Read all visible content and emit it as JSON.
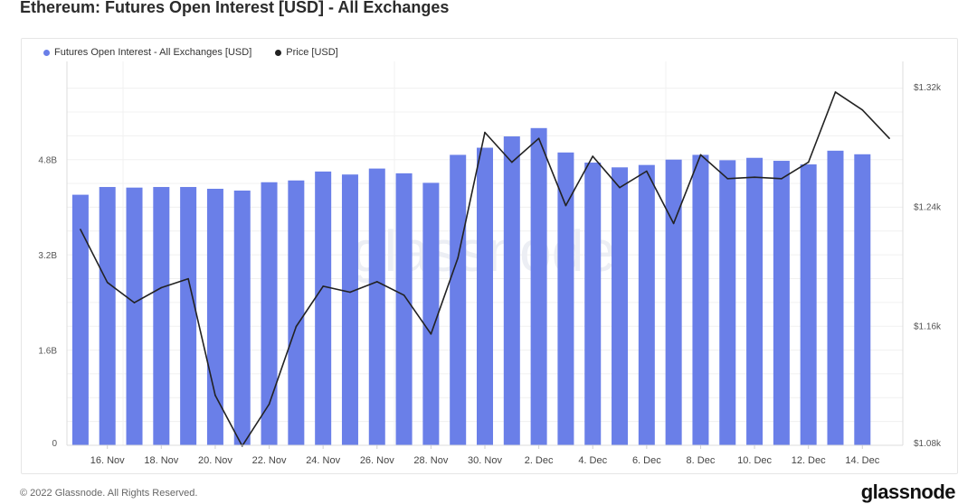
{
  "title": "Ethereum: Futures Open Interest [USD] - All Exchanges",
  "footer": {
    "copyright": "© 2022 Glassnode. All Rights Reserved.",
    "brand": "glassnode"
  },
  "watermark": "glassnode",
  "chart_data": {
    "type": "bar",
    "title": "Ethereum: Futures Open Interest [USD] - All Exchanges",
    "grid": true,
    "legend_position": "top-left",
    "colors": {
      "bars": "#6a7fe8",
      "price_line": "#222222"
    },
    "x": [
      "15 Nov",
      "16 Nov",
      "17 Nov",
      "18 Nov",
      "19 Nov",
      "20 Nov",
      "21 Nov",
      "22 Nov",
      "23 Nov",
      "24 Nov",
      "25 Nov",
      "26 Nov",
      "27 Nov",
      "28 Nov",
      "29 Nov",
      "30 Nov",
      "1 Dec",
      "2 Dec",
      "3 Dec",
      "4 Dec",
      "5 Dec",
      "6 Dec",
      "7 Dec",
      "8 Dec",
      "9 Dec",
      "10 Dec",
      "11 Dec",
      "12 Dec",
      "13 Dec",
      "14 Dec",
      "15 Dec"
    ],
    "x_tick_labels": [
      "16. Nov",
      "18. Nov",
      "20. Nov",
      "22. Nov",
      "24. Nov",
      "26. Nov",
      "28. Nov",
      "30. Nov",
      "2. Dec",
      "4. Dec",
      "6. Dec",
      "8. Dec",
      "10. Dec",
      "12. Dec",
      "14. Dec"
    ],
    "left_axis": {
      "ticks": [
        "0",
        "1.6B",
        "3.2B",
        "4.8B"
      ],
      "tick_values": [
        0,
        1.6,
        3.2,
        4.8
      ],
      "range": [
        0,
        6.45
      ]
    },
    "right_axis": {
      "ticks": [
        "$1.08k",
        "$1.16k",
        "$1.24k",
        "$1.32k"
      ],
      "tick_values": [
        1.08,
        1.16,
        1.24,
        1.32
      ],
      "range": [
        1.08,
        1.337
      ]
    },
    "series": [
      {
        "name": "Futures Open Interest - All Exchanges [USD]",
        "type": "bar",
        "axis": "left",
        "values": [
          4.21,
          4.34,
          4.33,
          4.34,
          4.34,
          4.31,
          4.28,
          4.42,
          4.45,
          4.6,
          4.55,
          4.65,
          4.57,
          4.41,
          4.88,
          5.0,
          5.19,
          5.33,
          4.92,
          4.75,
          4.67,
          4.71,
          4.8,
          4.88,
          4.79,
          4.83,
          4.78,
          4.72,
          4.95,
          4.89,
          null
        ]
      },
      {
        "name": "Price [USD]",
        "type": "line",
        "axis": "right",
        "values": [
          1.2245,
          1.189,
          1.1755,
          1.1855,
          1.1915,
          1.1135,
          1.0795,
          1.1075,
          1.1595,
          1.1865,
          1.1825,
          1.1895,
          1.1805,
          1.1545,
          1.2055,
          1.2895,
          1.2695,
          1.2855,
          1.2405,
          1.2735,
          1.2525,
          1.2635,
          1.2285,
          1.2745,
          1.2585,
          1.2595,
          1.2585,
          1.2695,
          1.3165,
          1.3045,
          1.2855
        ]
      }
    ]
  }
}
